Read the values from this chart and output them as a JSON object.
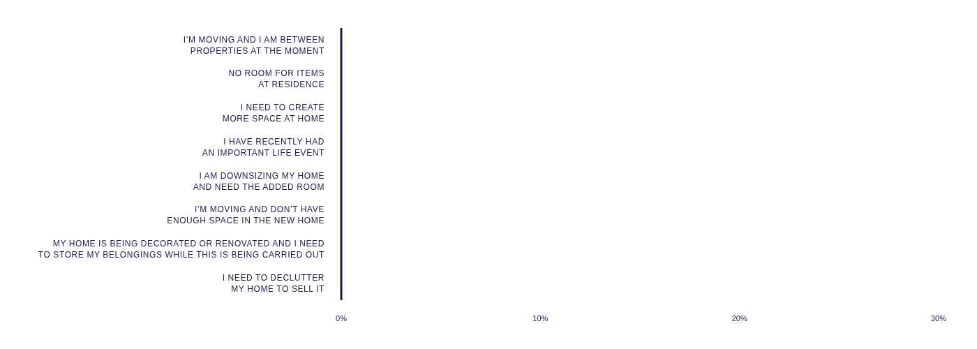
{
  "chart_data": {
    "type": "bar",
    "orientation": "horizontal",
    "categories": [
      "I’M MOVING AND I AM BETWEEN\nPROPERTIES AT THE MOMENT",
      "NO ROOM FOR ITEMS\nAT RESIDENCE",
      "I NEED TO CREATE\nMORE SPACE AT HOME",
      "I HAVE RECENTLY HAD\nAN IMPORTANT LIFE EVENT",
      "I AM DOWNSIZING MY HOME\nAND NEED THE ADDED ROOM",
      "I’M MOVING AND DON’T HAVE\nENOUGH SPACE IN THE NEW HOME",
      "MY HOME IS BEING DECORATED OR RENOVATED AND I NEED\nTO STORE MY BELONGINGS WHILE THIS IS BEING CARRIED OUT",
      "I NEED TO DECLUTTER\nMY HOME TO SELL IT"
    ],
    "values": [
      0,
      0,
      0,
      0,
      0,
      0,
      0,
      0
    ],
    "color": "#1e1b4b",
    "xlim": [
      0,
      30
    ],
    "xticks": [
      {
        "value": 0,
        "label": "0%"
      },
      {
        "value": 10,
        "label": "10%"
      },
      {
        "value": 20,
        "label": "20%"
      },
      {
        "value": 30,
        "label": "30%"
      }
    ]
  }
}
